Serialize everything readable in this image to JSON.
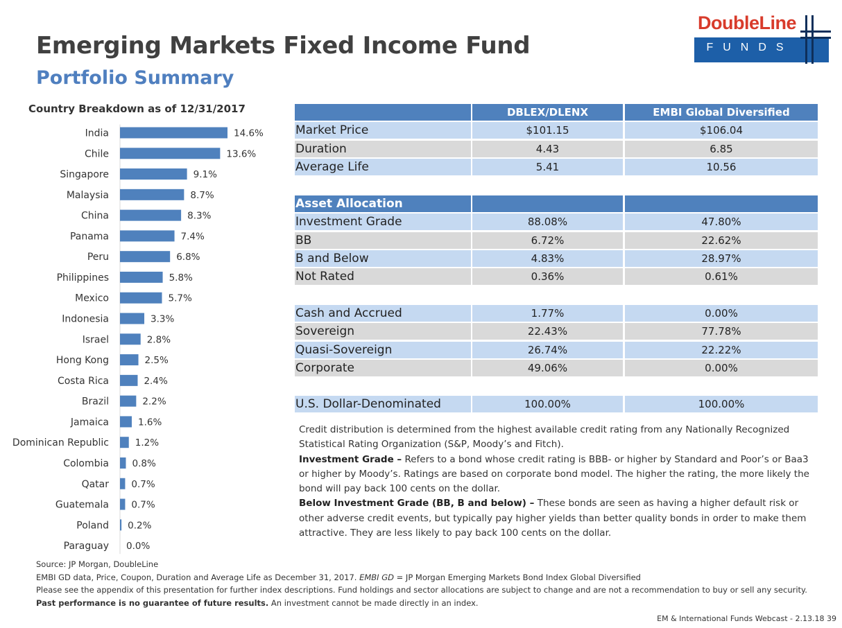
{
  "header": {
    "title": "Emerging Markets Fixed Income Fund",
    "subtitle": "Portfolio Summary"
  },
  "logo": {
    "name": "DoubleLine",
    "tagline": "FUNDS",
    "colors": {
      "red": "#d83b2b",
      "blue": "#1d5fa8",
      "navy": "#0e2f5a"
    }
  },
  "chart_data": {
    "type": "bar",
    "orientation": "horizontal",
    "title": "Country Breakdown as of 12/31/2017",
    "categories": [
      "India",
      "Chile",
      "Singapore",
      "Malaysia",
      "China",
      "Panama",
      "Peru",
      "Philippines",
      "Mexico",
      "Indonesia",
      "Israel",
      "Hong Kong",
      "Costa Rica",
      "Brazil",
      "Jamaica",
      "Dominican Republic",
      "Colombia",
      "Qatar",
      "Guatemala",
      "Poland",
      "Paraguay"
    ],
    "values": [
      14.6,
      13.6,
      9.1,
      8.7,
      8.3,
      7.4,
      6.8,
      5.8,
      5.7,
      3.3,
      2.8,
      2.5,
      2.4,
      2.2,
      1.6,
      1.2,
      0.8,
      0.7,
      0.7,
      0.2,
      0.0
    ],
    "labels": [
      "14.6%",
      "13.6%",
      "9.1%",
      "8.7%",
      "8.3%",
      "7.4%",
      "6.8%",
      "5.8%",
      "5.7%",
      "3.3%",
      "2.8%",
      "2.5%",
      "2.4%",
      "2.2%",
      "1.6%",
      "1.2%",
      "0.8%",
      "0.7%",
      "0.7%",
      "0.2%",
      "0.0%"
    ],
    "unit": "%",
    "xlim": [
      0,
      16
    ],
    "bar_color": "#4f81bd",
    "grid": false
  },
  "table": {
    "headers": [
      "",
      "DBLEX/DLENX",
      "EMBI Global Diversified"
    ],
    "summary": [
      {
        "label": "Market Price",
        "fund": "$101.15",
        "index": "$106.04"
      },
      {
        "label": "Duration",
        "fund": "4.43",
        "index": "6.85"
      },
      {
        "label": "Average Life",
        "fund": "5.41",
        "index": "10.56"
      }
    ],
    "asset_allocation_header": "Asset Allocation",
    "allocation": [
      {
        "label": "Investment Grade",
        "fund": "88.08%",
        "index": "47.80%"
      },
      {
        "label": "BB",
        "fund": "6.72%",
        "index": "22.62%"
      },
      {
        "label": "B and Below",
        "fund": "4.83%",
        "index": "28.97%"
      },
      {
        "label": "Not Rated",
        "fund": "0.36%",
        "index": "0.61%"
      }
    ],
    "sectors": [
      {
        "label": "Cash and Accrued",
        "fund": "1.77%",
        "index": "0.00%"
      },
      {
        "label": "Sovereign",
        "fund": "22.43%",
        "index": "77.78%"
      },
      {
        "label": "Quasi-Sovereign",
        "fund": "26.74%",
        "index": "22.22%"
      },
      {
        "label": "Corporate",
        "fund": "49.06%",
        "index": "0.00%"
      }
    ],
    "usd": {
      "label": "U.S. Dollar-Denominated",
      "fund": "100.00%",
      "index": "100.00%"
    },
    "colors": {
      "header": "#4f81bd",
      "row_blue": "#c5d9f1",
      "row_gray": "#d9d9d9"
    }
  },
  "notes": {
    "intro": "Credit distribution is determined from the highest available credit rating from any Nationally Recognized Statistical Rating Organization (S&P, Moody’s and Fitch).",
    "ig_term": "Investment Grade –",
    "ig_text": " Refers to a bond whose credit rating is BBB- or higher by Standard and Poor’s or Baa3 or higher by Moody’s.  Ratings are based on corporate bond model.  The higher the rating, the more likely the bond will pay back 100 cents on the dollar.",
    "big_term": "Below Investment Grade (BB, B and below) –",
    "big_text": " These bonds are seen as having a higher default risk or other adverse credit events, but typically pay higher yields than better quality bonds in order to make them attractive.  They are less likely to pay back 100 cents on the dollar."
  },
  "footer": {
    "source": "Source: JP Morgan, DoubleLine",
    "embi_prefix": "EMBI GD data, Price, Coupon, Duration and Average Life as December 31, 2017. ",
    "embi_term": "EMBI GD",
    "embi_suffix": " = JP Morgan Emerging Markets Bond Index Global Diversified",
    "appendix": "Please see the  appendix of this presentation for further index descriptions. Fund holdings and sector allocations are subject to change and are not a recommendation to buy or sell any security.",
    "past_bold": "Past performance is no guarantee of future results.",
    "past_rest": " An investment cannot be made directly in an index.",
    "page": "EM & International Funds Webcast - 2.13.18  39"
  }
}
